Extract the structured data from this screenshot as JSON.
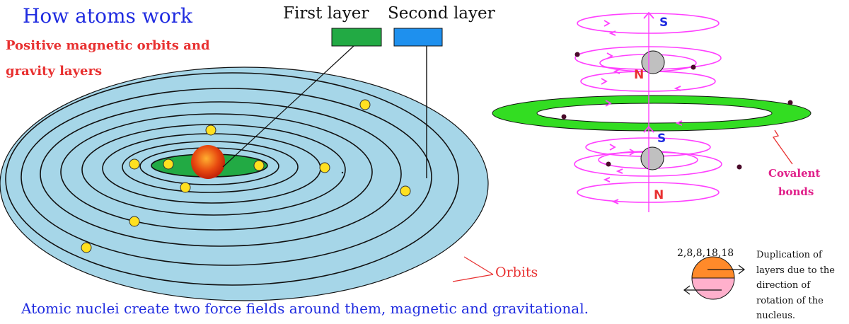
{
  "title": "How atoms work",
  "subtitle_line1": "Positive magnetic orbits and",
  "subtitle_line2": "gravity layers",
  "layer_labels": {
    "first": "First layer",
    "second": "Second layer"
  },
  "orbits_label": "Orbits",
  "covalent_label_line1": "Covalent",
  "covalent_label_line2": "bonds",
  "poles": {
    "top_s": "S",
    "top_n": "N",
    "bottom_s": "S",
    "bottom_n": "N"
  },
  "shell_sequence": "2,8,8,18,18",
  "duplication_note": "Duplication of layers due to the direction of rotation of the nucleus.",
  "bottom_caption": "Atomic nuclei create two force fields around them, magnetic and gravitational.",
  "colors": {
    "title_blue": "#1f2be0",
    "subtitle_red": "#e83030",
    "first_layer_green": "#22aa44",
    "second_layer_blue": "#1e90ee",
    "disk_blue": "#a6d6e8",
    "nucleus_red": "#e83a10",
    "electron_yellow": "#ffe020",
    "magnetic_magenta": "#ff40ff",
    "covalent_green": "#33dd22",
    "nucleus_grey": "#c0c0c0",
    "rotation_orange": "#ff8a2a",
    "rotation_pink": "#ffb0cc"
  }
}
